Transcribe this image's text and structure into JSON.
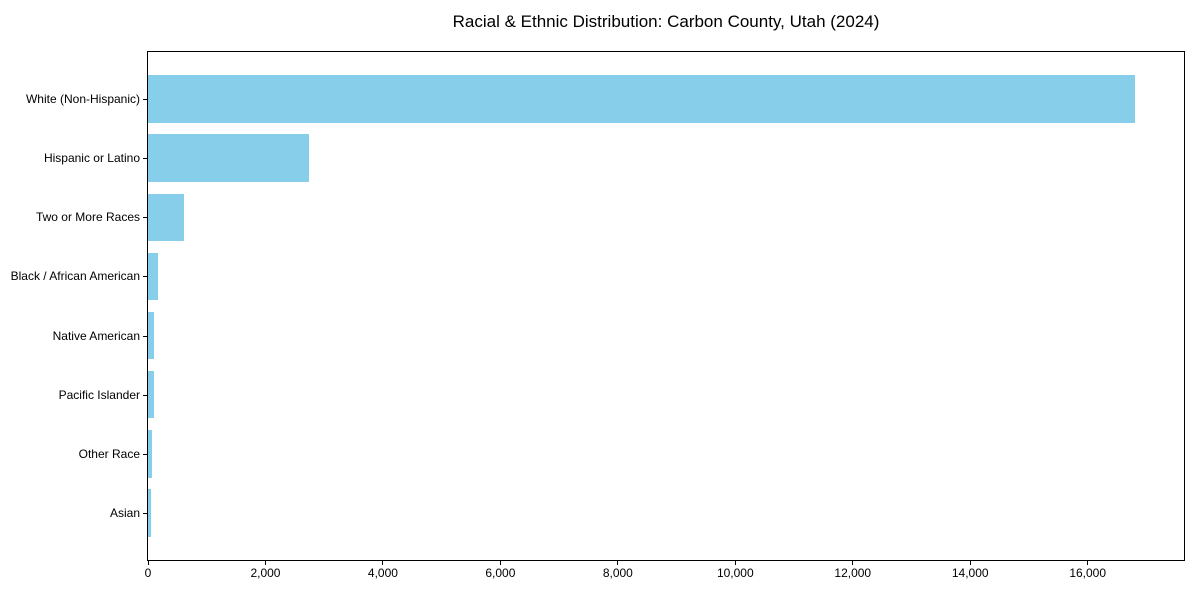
{
  "figure": {
    "background": "#ffffff"
  },
  "chart_data": {
    "type": "bar",
    "orientation": "horizontal",
    "title": "Racial & Ethnic Distribution: Carbon County, Utah (2024)",
    "categories": [
      "White (Non-Hispanic)",
      "Hispanic or Latino",
      "Two or More Races",
      "Black / African American",
      "Native American",
      "Pacific Islander",
      "Other Race",
      "Asian"
    ],
    "values": [
      16800,
      2740,
      620,
      170,
      100,
      95,
      75,
      55
    ],
    "bar_color": "#87CEEB",
    "axis_color": "#000000",
    "text_color": "#000000",
    "xlabel": "",
    "ylabel": "",
    "xlim": [
      0,
      17640
    ],
    "x_ticks": [
      0,
      2000,
      4000,
      6000,
      8000,
      10000,
      12000,
      14000,
      16000
    ],
    "x_tick_labels": [
      "0",
      "2,000",
      "4,000",
      "6,000",
      "8,000",
      "10,000",
      "12,000",
      "14,000",
      "16,000"
    ],
    "grid": false,
    "legend_position": "none"
  }
}
